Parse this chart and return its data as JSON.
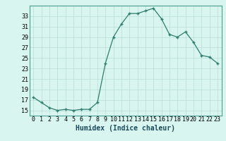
{
  "x": [
    0,
    1,
    2,
    3,
    4,
    5,
    6,
    7,
    8,
    9,
    10,
    11,
    12,
    13,
    14,
    15,
    16,
    17,
    18,
    19,
    20,
    21,
    22,
    23
  ],
  "y": [
    17.5,
    16.5,
    15.5,
    15.0,
    15.2,
    15.0,
    15.2,
    15.2,
    16.5,
    24.0,
    29.0,
    31.5,
    33.5,
    33.5,
    34.0,
    34.5,
    32.5,
    29.5,
    29.0,
    30.0,
    28.0,
    25.5,
    25.2,
    24.0
  ],
  "line_color": "#2e7d6e",
  "marker_color": "#2e7d6e",
  "bg_color": "#d8f5f0",
  "grid_color": "#b8ddd8",
  "xlabel": "Humidex (Indice chaleur)",
  "xlim": [
    -0.5,
    23.5
  ],
  "ylim": [
    14,
    35
  ],
  "yticks": [
    15,
    17,
    19,
    21,
    23,
    25,
    27,
    29,
    31,
    33
  ],
  "xticks": [
    0,
    1,
    2,
    3,
    4,
    5,
    6,
    7,
    8,
    9,
    10,
    11,
    12,
    13,
    14,
    15,
    16,
    17,
    18,
    19,
    20,
    21,
    22,
    23
  ],
  "xlabel_fontsize": 7,
  "tick_fontsize": 6,
  "spine_color": "#4a9e8e"
}
